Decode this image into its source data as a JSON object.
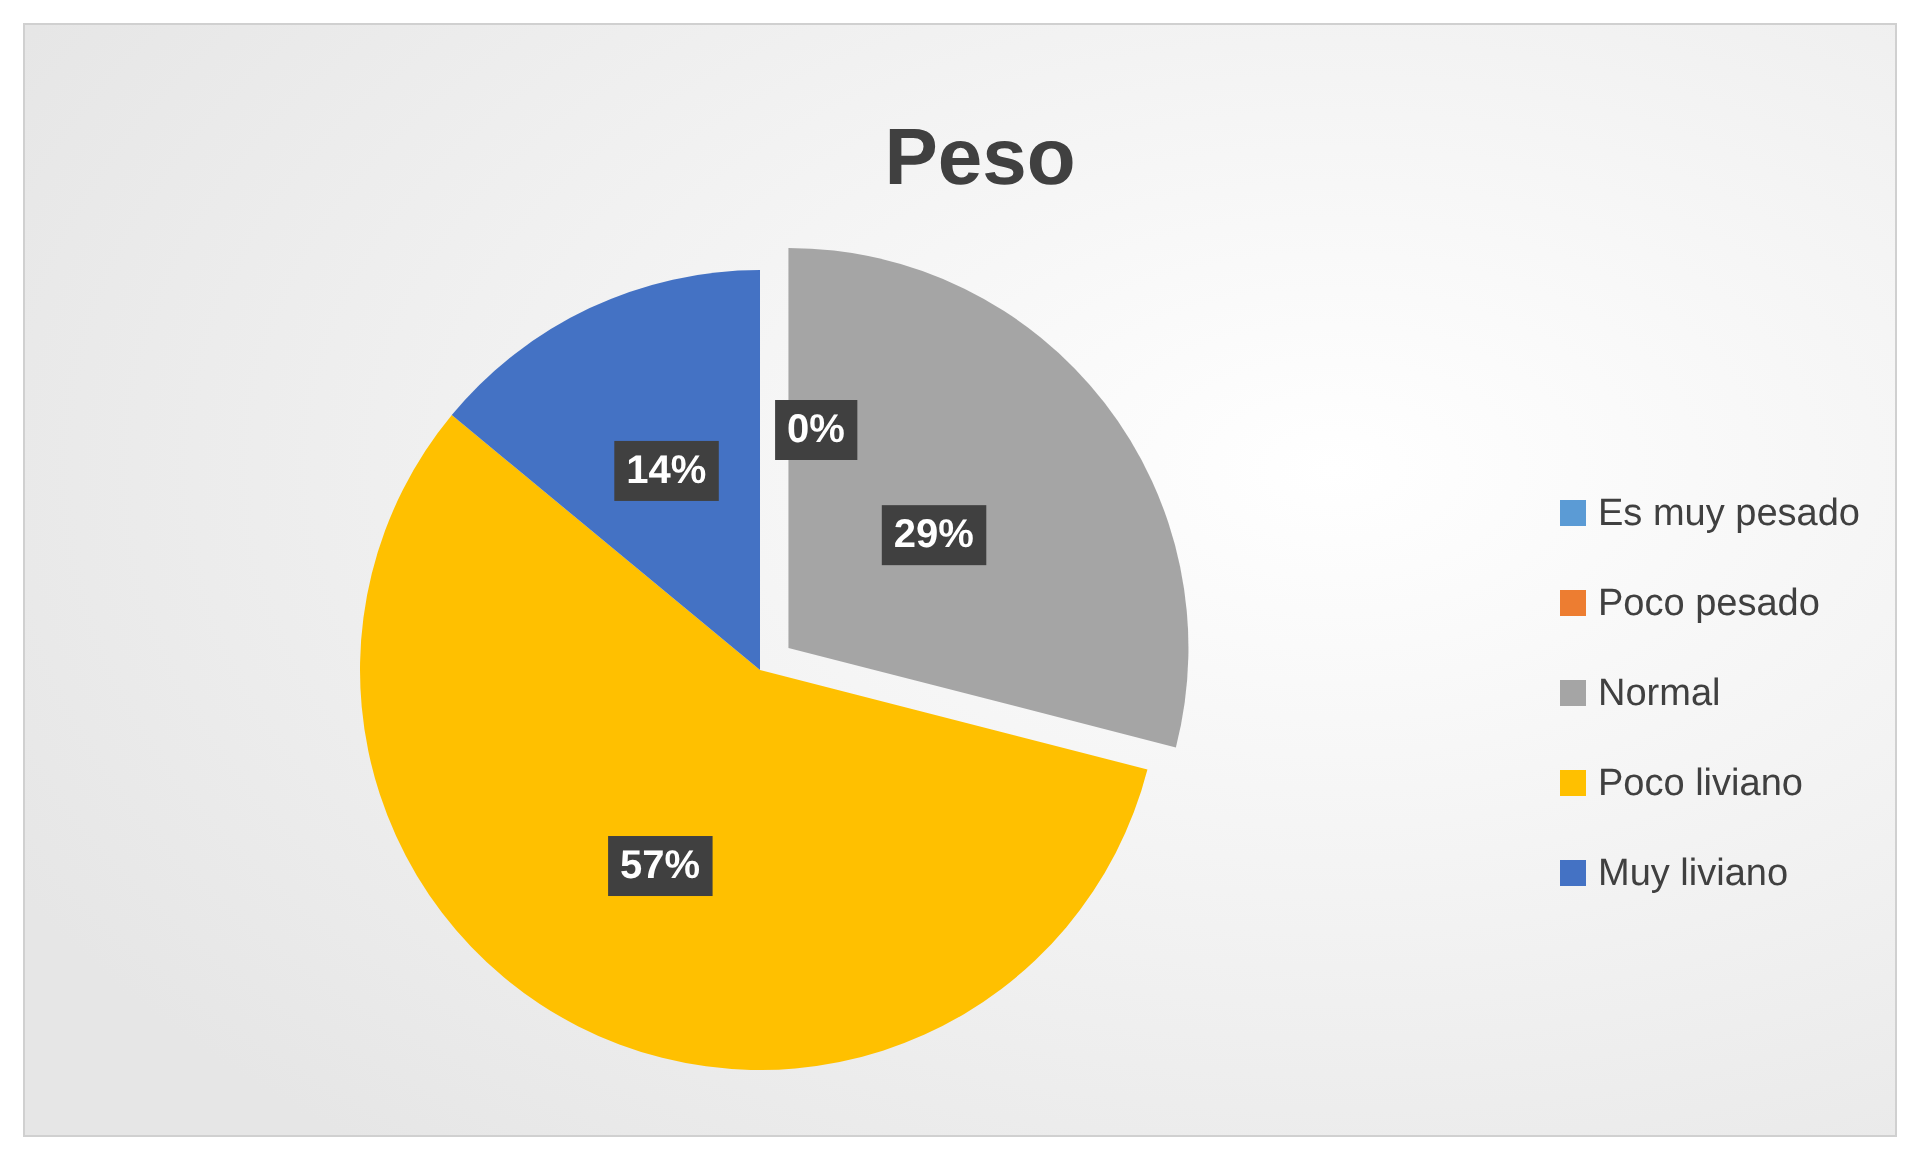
{
  "chart_data": {
    "type": "pie",
    "title": "Peso",
    "categories": [
      "Es muy pesado",
      "Poco pesado",
      "Normal",
      "Poco liviano",
      "Muy liviano"
    ],
    "values": [
      0,
      0,
      29,
      57,
      14
    ],
    "colors": [
      "#5b9bd5",
      "#ed7d31",
      "#a5a5a5",
      "#ffc000",
      "#4472c4"
    ],
    "value_labels": [
      "0%",
      null,
      "29%",
      "57%",
      "14%"
    ],
    "legend": "right"
  }
}
